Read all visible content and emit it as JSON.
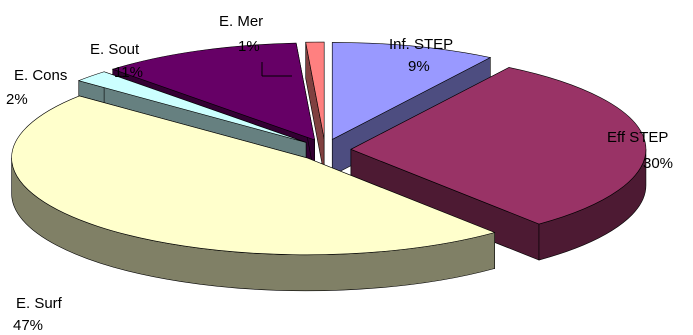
{
  "chart_data": {
    "type": "pie",
    "title": "",
    "style": "3d-exploded",
    "legend": "none",
    "slices": [
      {
        "label": "Inf. STEP",
        "value": 9,
        "value_label": "9%",
        "top_color": "#9999ff",
        "side_color": "#4d4d80"
      },
      {
        "label": "Eff STEP",
        "value": 30,
        "value_label": "30%",
        "top_color": "#993366",
        "side_color": "#4d1a33"
      },
      {
        "label": "E. Surf",
        "value": 47,
        "value_label": "47%",
        "top_color": "#ffffcc",
        "side_color": "#808066"
      },
      {
        "label": "E. Cons",
        "value": 2,
        "value_label": "2%",
        "top_color": "#ccffff",
        "side_color": "#668080"
      },
      {
        "label": "E. Sout",
        "value": 11,
        "value_label": "11%",
        "top_color": "#660066",
        "side_color": "#330033"
      },
      {
        "label": "E. Mer",
        "value": 1,
        "value_label": "1%",
        "top_color": "#ff8080",
        "side_color": "#804040"
      }
    ]
  }
}
